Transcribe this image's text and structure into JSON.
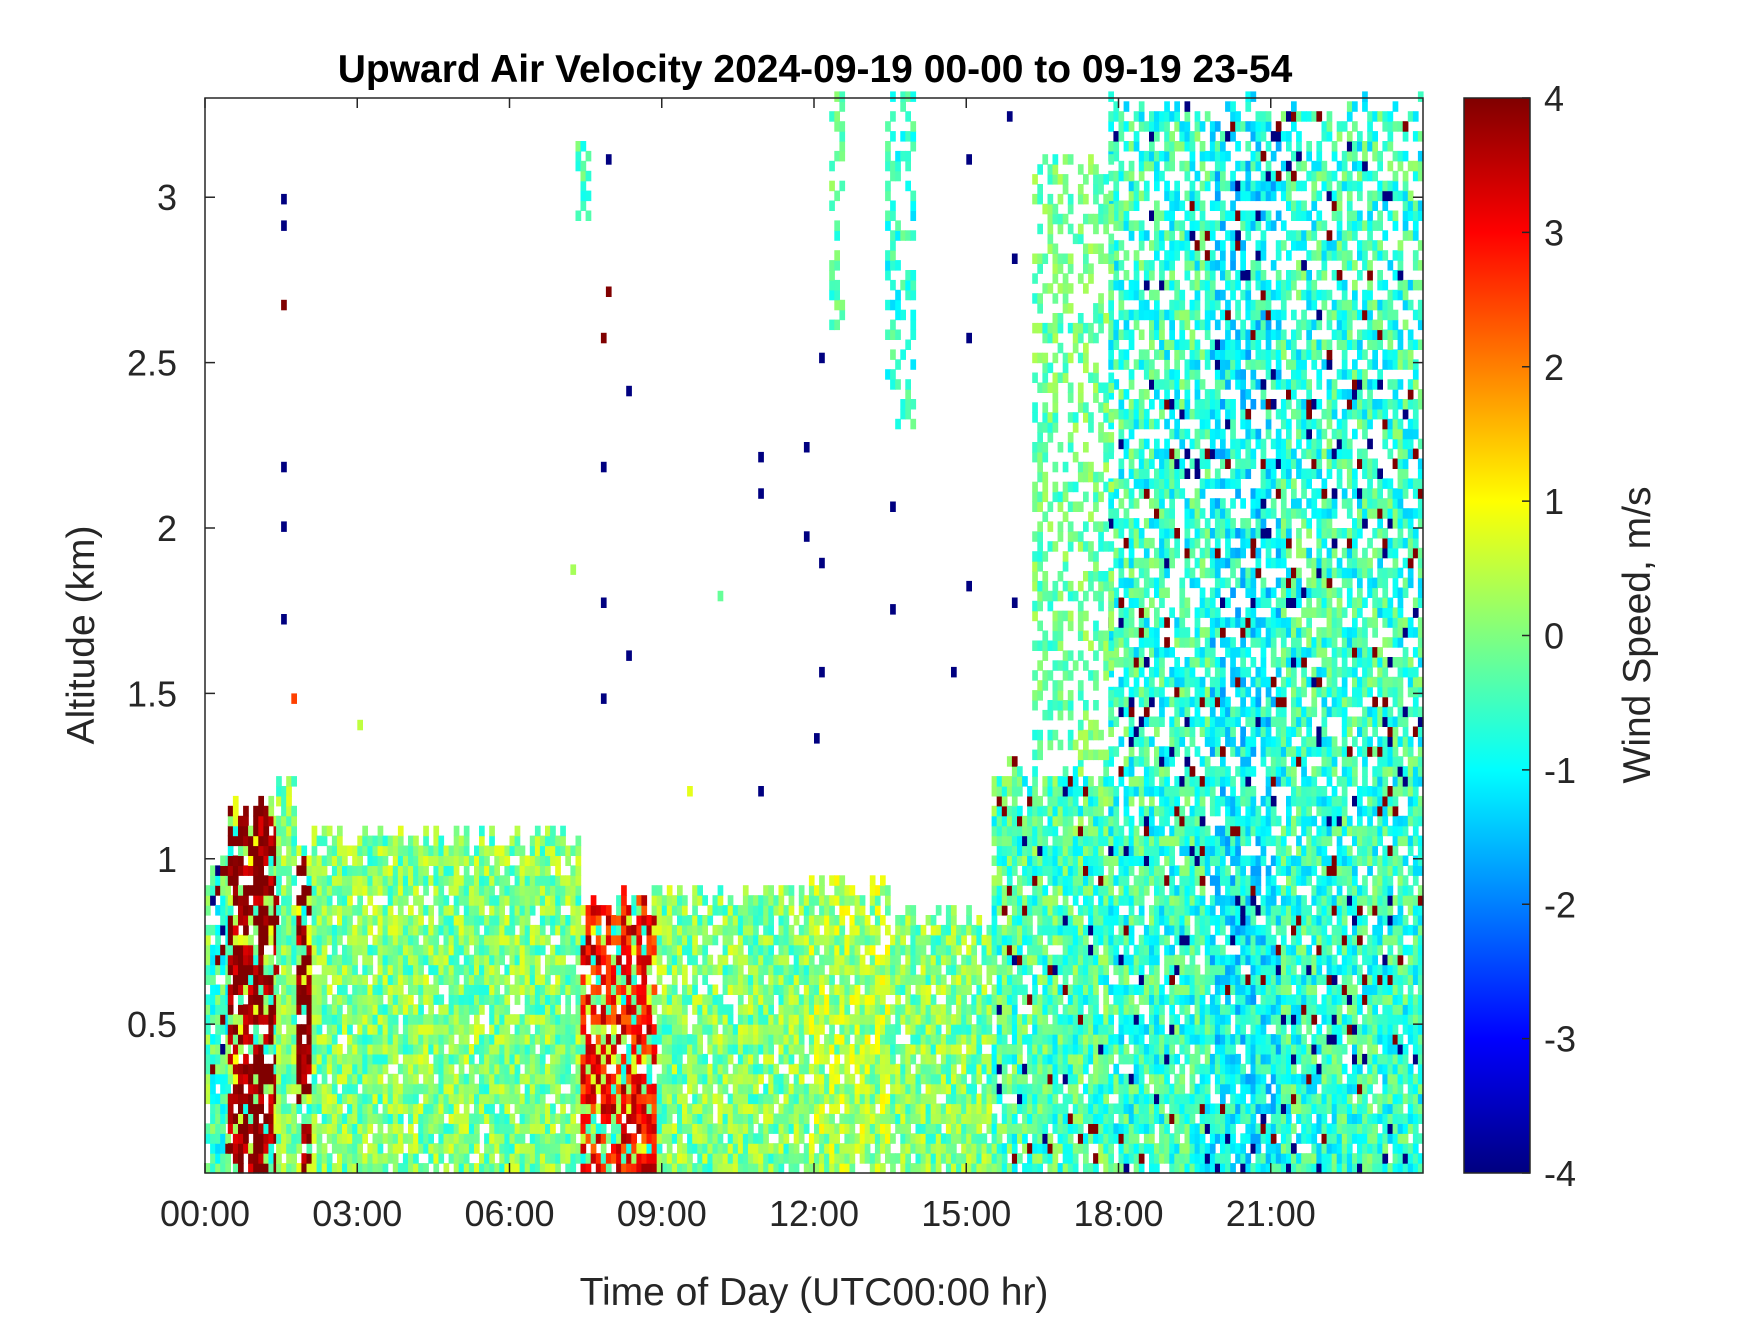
{
  "chart_data": {
    "type": "heatmap",
    "title": "Upward Air Velocity 2024-09-19 00-00 to 09-19 23-54",
    "xlabel": "Time of Day (UTC00:00 hr)",
    "ylabel": "Altitude (km)",
    "colorbar_label": "Wind Speed, m/s",
    "colormap": "jet",
    "xlim_hours": [
      0,
      24
    ],
    "ylim_km": [
      0.05,
      3.3
    ],
    "clim": [
      -4,
      4
    ],
    "x_tick_hours": [
      0,
      3,
      6,
      9,
      12,
      15,
      18,
      21
    ],
    "x_tick_labels": [
      "00:00",
      "03:00",
      "06:00",
      "09:00",
      "12:00",
      "15:00",
      "18:00",
      "21:00"
    ],
    "y_ticks": [
      0.5,
      1,
      1.5,
      2,
      2.5,
      3
    ],
    "y_tick_labels": [
      "0.5",
      "1",
      "1.5",
      "2",
      "2.5",
      "3"
    ],
    "colorbar_ticks": [
      -4,
      -3,
      -2,
      -1,
      0,
      1,
      2,
      3,
      4
    ],
    "colorbar_tick_labels": [
      "-4",
      "-3",
      "-2",
      "-1",
      "0",
      "1",
      "2",
      "3",
      "4"
    ],
    "grid": false,
    "time_step_minutes": 6,
    "altitude_step_km": 0.03,
    "coverage_regions": [
      {
        "t": [
          0.0,
          0.1
        ],
        "top": 0.95,
        "mean": 0.0
      },
      {
        "t": [
          0.1,
          0.45
        ],
        "top": 1.0,
        "mean": -0.5
      },
      {
        "t": [
          0.45,
          1.4
        ],
        "top": 1.2,
        "mean": 4.0
      },
      {
        "t": [
          1.4,
          1.8
        ],
        "top": 1.25,
        "mean": 0.0
      },
      {
        "t": [
          1.8,
          2.1
        ],
        "top": 1.05,
        "mean": 4.0
      },
      {
        "t": [
          2.1,
          7.4
        ],
        "top": 1.1,
        "mean": 0.0
      },
      {
        "t": [
          7.4,
          8.9
        ],
        "top": 0.9,
        "mean": 3.0
      },
      {
        "t": [
          8.9,
          11.9
        ],
        "top": 0.92,
        "mean": 0.0
      },
      {
        "t": [
          11.9,
          13.5
        ],
        "top": 0.95,
        "mean": 0.3
      },
      {
        "t": [
          13.5,
          15.5
        ],
        "top": 0.85,
        "mean": 0.0
      },
      {
        "t": [
          15.5,
          17.8
        ],
        "top": 1.3,
        "mean": -0.4
      },
      {
        "t": [
          17.8,
          19.8
        ],
        "top": 3.3,
        "mean": -0.6
      },
      {
        "t": [
          19.8,
          21.2
        ],
        "top": 3.3,
        "mean": -1.0
      },
      {
        "t": [
          21.2,
          24.0
        ],
        "top": 3.3,
        "mean": -0.6
      }
    ],
    "upper_streaks": [
      {
        "t": [
          7.3,
          7.5
        ],
        "alt": [
          2.9,
          3.15
        ],
        "value": -0.5
      },
      {
        "t": [
          12.3,
          12.6
        ],
        "alt": [
          2.6,
          3.3
        ],
        "value": -0.3
      },
      {
        "t": [
          13.4,
          13.9
        ],
        "alt": [
          2.3,
          3.3
        ],
        "value": -0.7
      },
      {
        "t": [
          16.3,
          17.9
        ],
        "alt": [
          1.3,
          3.1
        ],
        "value": -0.2
      }
    ],
    "isolated_points": [
      {
        "t": 1.5,
        "alt": 2.98,
        "value": -4
      },
      {
        "t": 1.5,
        "alt": 2.9,
        "value": -4
      },
      {
        "t": 1.5,
        "alt": 2.66,
        "value": 4
      },
      {
        "t": 1.5,
        "alt": 2.17,
        "value": -4
      },
      {
        "t": 1.5,
        "alt": 1.99,
        "value": -4
      },
      {
        "t": 1.5,
        "alt": 1.71,
        "value": -4
      },
      {
        "t": 1.7,
        "alt": 1.47,
        "value": 2.5
      },
      {
        "t": 3.0,
        "alt": 1.39,
        "value": 0.5
      },
      {
        "t": 7.9,
        "alt": 3.1,
        "value": -4
      },
      {
        "t": 7.8,
        "alt": 2.56,
        "value": 4
      },
      {
        "t": 7.9,
        "alt": 2.7,
        "value": 4
      },
      {
        "t": 8.3,
        "alt": 2.4,
        "value": -4
      },
      {
        "t": 7.8,
        "alt": 2.17,
        "value": -4
      },
      {
        "t": 7.8,
        "alt": 1.76,
        "value": -4
      },
      {
        "t": 8.3,
        "alt": 1.6,
        "value": -4
      },
      {
        "t": 7.8,
        "alt": 1.47,
        "value": -4
      },
      {
        "t": 7.2,
        "alt": 1.86,
        "value": 0.3
      },
      {
        "t": 10.1,
        "alt": 1.78,
        "value": -0.2
      },
      {
        "t": 10.9,
        "alt": 2.2,
        "value": -4
      },
      {
        "t": 10.9,
        "alt": 2.09,
        "value": -4
      },
      {
        "t": 10.9,
        "alt": 1.19,
        "value": -4
      },
      {
        "t": 11.8,
        "alt": 2.23,
        "value": -4
      },
      {
        "t": 11.8,
        "alt": 1.96,
        "value": -4
      },
      {
        "t": 12.1,
        "alt": 2.5,
        "value": -4
      },
      {
        "t": 12.1,
        "alt": 1.88,
        "value": -4
      },
      {
        "t": 12.1,
        "alt": 1.55,
        "value": -4
      },
      {
        "t": 12.0,
        "alt": 1.35,
        "value": -4
      },
      {
        "t": 13.5,
        "alt": 2.05,
        "value": -4
      },
      {
        "t": 13.5,
        "alt": 1.74,
        "value": -4
      },
      {
        "t": 14.7,
        "alt": 1.55,
        "value": -4
      },
      {
        "t": 15.0,
        "alt": 2.56,
        "value": -4
      },
      {
        "t": 15.0,
        "alt": 1.81,
        "value": -4
      },
      {
        "t": 15.0,
        "alt": 3.1,
        "value": -4
      },
      {
        "t": 15.8,
        "alt": 3.23,
        "value": -4
      },
      {
        "t": 15.9,
        "alt": 2.8,
        "value": -4
      },
      {
        "t": 15.9,
        "alt": 1.76,
        "value": -4
      },
      {
        "t": 9.5,
        "alt": 1.19,
        "value": 0.8
      }
    ]
  }
}
